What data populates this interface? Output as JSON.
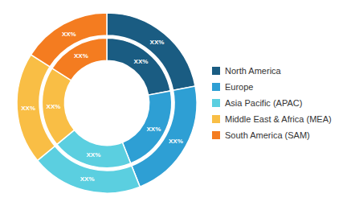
{
  "chart_data": {
    "type": "pie",
    "categories": [
      "North America",
      "Europe",
      "Asia Pacific (APAC)",
      "Middle East & Africa (MEA)",
      "South America (SAM)"
    ],
    "series": [
      {
        "values": [
          22,
          22,
          20,
          20,
          16
        ],
        "colors": [
          "#1a5c82",
          "#2e9fd4",
          "#5bcfe0",
          "#f9be45",
          "#f47c20"
        ],
        "value_labels": [
          "XX%",
          "XX%",
          "XX%",
          "XX%",
          "XX%"
        ]
      },
      {
        "values": [
          22,
          22,
          20,
          20,
          16
        ],
        "colors": [
          "#1a5c82",
          "#2e9fd4",
          "#5bcfe0",
          "#f9be45",
          "#f47c20"
        ],
        "value_labels": [
          "XX%",
          "XX%",
          "XX%",
          "XX%",
          "XX%"
        ]
      }
    ],
    "legend": "right",
    "data_labels": true
  }
}
